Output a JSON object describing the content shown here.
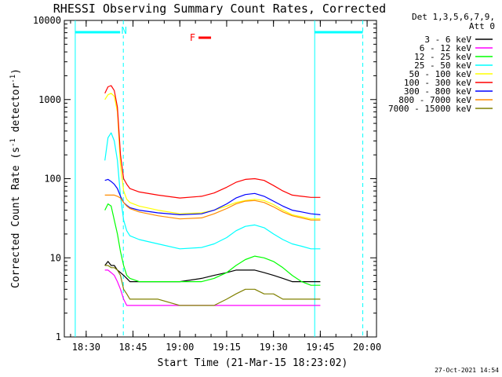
{
  "title": "RHESSI Observing Summary Count Rates, Corrected",
  "xlabel": "Start Time (21-Mar-15 18:23:02)",
  "ylabel_parts": [
    "Corrected Count Rate (s",
    "-1",
    " detector",
    "-1",
    ")"
  ],
  "footer_date": "27-Oct-2021 14:54",
  "legend": {
    "header_lines": [
      "Det 1,3,5,6,7,9,",
      "Att 0"
    ]
  },
  "flags": {
    "night_marker": "N",
    "flare_marker": "F",
    "flare_color": "#ff0000",
    "band_color": "#00ffff",
    "band_segments": [
      {
        "start_min": 3.5,
        "end_min": 18.9
      },
      {
        "start_min": 80.2,
        "end_min": 95.6
      }
    ],
    "night_lines_min": [
      18.9,
      95.6
    ],
    "saa_lines_min": [
      3.5,
      80.2
    ],
    "flare_segment": {
      "start_min": 43.0,
      "end_min": 47.0
    }
  },
  "chart_data": {
    "type": "line",
    "title": "RHESSI Observing Summary Count Rates, Corrected",
    "xlabel": "Start Time (21-Mar-15 18:23:02)",
    "ylabel": "Corrected Count Rate (s-1 detector-1)",
    "x_unit": "minutes after 18:23:02",
    "xlim": [
      0,
      100
    ],
    "ylim": [
      1,
      10000
    ],
    "yscale": "log",
    "grid": false,
    "legend_position": "top-right outside",
    "x_ticks": [
      {
        "label": "18:30",
        "value": 7
      },
      {
        "label": "18:45",
        "value": 22
      },
      {
        "label": "19:00",
        "value": 37
      },
      {
        "label": "19:15",
        "value": 52
      },
      {
        "label": "19:30",
        "value": 67
      },
      {
        "label": "19:45",
        "value": 82
      },
      {
        "label": "20:00",
        "value": 97
      }
    ],
    "y_ticks": [
      {
        "label": "1",
        "value": 1
      },
      {
        "label": "10",
        "value": 10
      },
      {
        "label": "100",
        "value": 100
      },
      {
        "label": "1000",
        "value": 1000
      },
      {
        "label": "10000",
        "value": 10000
      }
    ],
    "x": [
      13,
      14,
      15,
      16,
      17,
      18,
      19,
      20,
      21,
      24,
      30,
      37,
      44,
      48,
      52,
      55,
      58,
      61,
      64,
      67,
      70,
      73,
      76,
      79,
      82
    ],
    "series": [
      {
        "name": "3 - 6 keV",
        "color": "#000000",
        "values": [
          8,
          9,
          8,
          8,
          7,
          6.5,
          6,
          5.5,
          5,
          5,
          5,
          5,
          5.5,
          6,
          6.5,
          7,
          7,
          7,
          6.5,
          6,
          5.5,
          5,
          5,
          5,
          5
        ]
      },
      {
        "name": "6 - 12 keV",
        "color": "#ff00ff",
        "values": [
          7,
          7,
          6.5,
          6,
          5,
          4,
          3,
          2.5,
          2.5,
          2.5,
          2.5,
          2.5,
          2.5,
          2.5,
          2.5,
          2.5,
          2.5,
          2.5,
          2.5,
          2.5,
          2.5,
          2.5,
          2.5,
          2.5,
          2.5
        ]
      },
      {
        "name": "12 - 25 keV",
        "color": "#00ff00",
        "values": [
          40,
          48,
          45,
          30,
          20,
          12,
          8,
          6,
          5.5,
          5,
          5,
          5,
          5,
          5.5,
          6.5,
          8,
          9.5,
          10.5,
          10,
          9,
          7.5,
          6,
          5,
          4.5,
          4.5
        ]
      },
      {
        "name": "25 - 50 keV",
        "color": "#00ffff",
        "values": [
          170,
          330,
          380,
          300,
          170,
          60,
          30,
          22,
          19,
          17,
          15,
          13,
          13.5,
          15,
          18,
          22,
          25,
          26,
          24,
          20,
          17,
          15,
          14,
          13,
          13
        ]
      },
      {
        "name": "50 - 100 keV",
        "color": "#ffff00",
        "values": [
          1000,
          1150,
          1200,
          1100,
          700,
          150,
          70,
          55,
          50,
          45,
          40,
          36,
          37,
          40,
          45,
          50,
          53,
          55,
          53,
          47,
          40,
          35,
          33,
          31,
          31
        ]
      },
      {
        "name": "100 - 300 keV",
        "color": "#ff0000",
        "values": [
          1200,
          1450,
          1500,
          1300,
          800,
          200,
          100,
          85,
          75,
          68,
          62,
          57,
          60,
          66,
          78,
          90,
          98,
          100,
          95,
          82,
          70,
          62,
          60,
          58,
          58
        ]
      },
      {
        "name": "300 - 800 keV",
        "color": "#0000ff",
        "values": [
          95,
          98,
          92,
          85,
          75,
          60,
          50,
          46,
          43,
          40,
          37,
          35,
          36,
          40,
          48,
          57,
          63,
          65,
          60,
          52,
          45,
          40,
          38,
          36,
          35
        ]
      },
      {
        "name": "800 - 7000 keV",
        "color": "#ff8c00",
        "values": [
          62,
          62,
          62,
          62,
          60,
          57,
          50,
          45,
          42,
          38,
          34,
          31,
          32,
          36,
          42,
          48,
          52,
          53,
          50,
          44,
          38,
          34,
          32,
          30,
          30
        ]
      },
      {
        "name": "7000 - 15000 keV",
        "color": "#808000",
        "values": [
          8,
          8,
          7.5,
          7.5,
          7,
          6,
          4,
          3.5,
          3,
          3,
          3,
          2.5,
          2.5,
          2.5,
          3,
          3.5,
          4,
          4,
          3.5,
          3.5,
          3,
          3,
          3,
          3,
          3
        ]
      }
    ]
  }
}
